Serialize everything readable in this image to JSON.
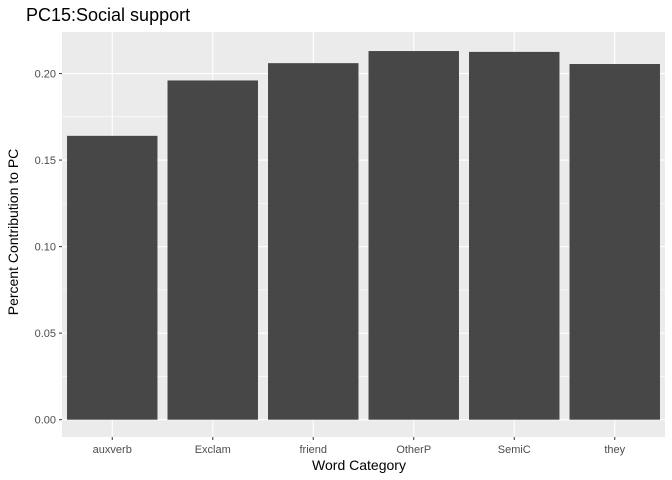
{
  "chart_data": {
    "type": "bar",
    "title": "PC15:Social support",
    "xlabel": "Word Category",
    "ylabel": "Percent Contribution to PC",
    "categories": [
      "auxverb",
      "Exclam",
      "friend",
      "OtherP",
      "SemiC",
      "they"
    ],
    "values": [
      0.164,
      0.196,
      0.206,
      0.213,
      0.2125,
      0.2055
    ],
    "ylim": [
      -0.01,
      0.224
    ],
    "yticks": [
      0.0,
      0.05,
      0.1,
      0.15,
      0.2
    ],
    "ytick_labels": [
      "0.00",
      "0.05",
      "0.10",
      "0.15",
      "0.20"
    ],
    "grid": true,
    "colors": {
      "bar": "#474747",
      "panel": "#ebebeb",
      "grid_major": "#ffffff",
      "tick_text": "#4d4d4d",
      "tick_mark": "#333333"
    }
  }
}
